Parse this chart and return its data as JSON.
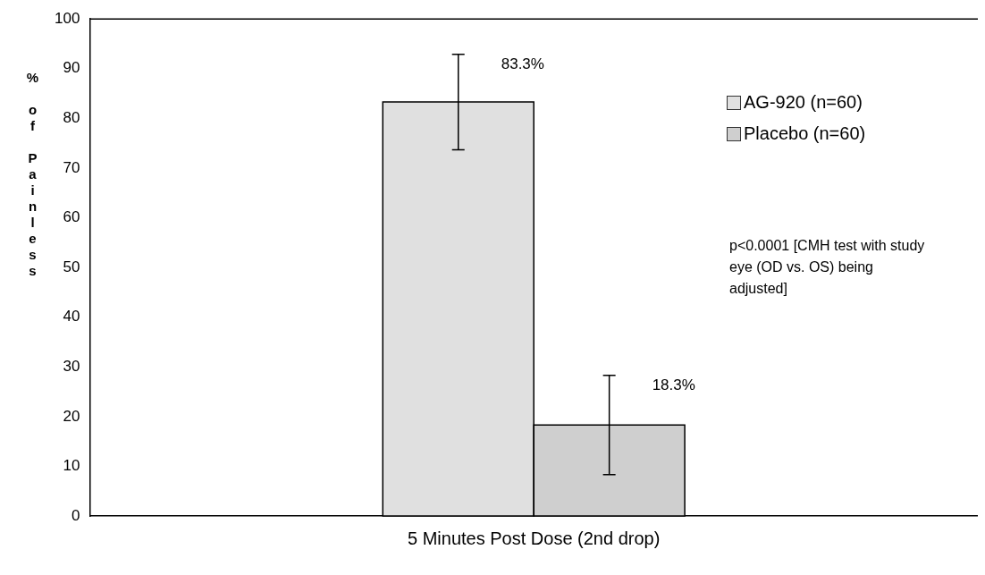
{
  "chart_data": {
    "type": "bar",
    "categories": [
      "5 Minutes Post Dose (2nd drop)"
    ],
    "series": [
      {
        "name": "AG-920 (n=60)",
        "color": "#e0e0e0",
        "values": [
          83.3
        ],
        "errors": [
          9.6
        ],
        "value_labels": [
          "83.3%"
        ]
      },
      {
        "name": "Placebo (n=60)",
        "color": "#cfcfcf",
        "values": [
          18.3
        ],
        "errors": [
          10
        ],
        "value_labels": [
          "18.3%"
        ]
      }
    ],
    "ylabel": "% of Painless",
    "ylim": [
      0,
      100
    ],
    "yticks": [
      0,
      10,
      20,
      30,
      40,
      50,
      60,
      70,
      80,
      90,
      100
    ],
    "grid": false,
    "legend": "top right",
    "annotations": [
      "p<0.0001 [CMH test with study eye (OD vs. OS) being adjusted]"
    ]
  }
}
